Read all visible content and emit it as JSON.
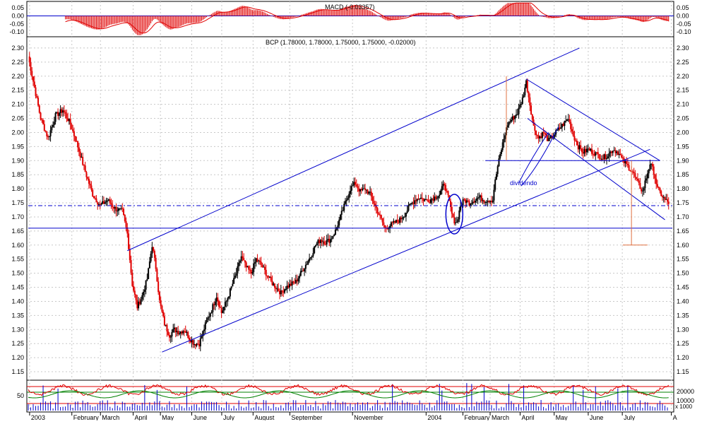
{
  "colors": {
    "frame": "#000000",
    "grid": "#c8c8c8",
    "up": "#000000",
    "down": "#e00000",
    "trend": "#0000cc",
    "macd_line": "#e00000",
    "macd_hist": "#e00000",
    "target": "#e07040",
    "osc_red": "#e00000",
    "osc_green": "#008000"
  },
  "chart_data": [
    {
      "type": "bar",
      "title": "MACD (-0.03357)",
      "ylim": [
        -0.13,
        0.09
      ],
      "yticks": [
        "0.05",
        "0.00",
        "-0.05",
        "-0.10"
      ],
      "ytick_values": [
        0.05,
        0.0,
        -0.05,
        -0.1
      ],
      "legend": "none",
      "grid": true
    },
    {
      "type": "line",
      "title": "BCP (1.78000, 1.78000, 1.75000, 1.75000, -0.02000)",
      "ylim": [
        1.12,
        2.34
      ],
      "yticks": [
        "2.30",
        "2.25",
        "2.20",
        "2.15",
        "2.10",
        "2.05",
        "2.00",
        "1.95",
        "1.90",
        "1.85",
        "1.80",
        "1.75",
        "1.70",
        "1.65",
        "1.60",
        "1.55",
        "1.50",
        "1.45",
        "1.40",
        "1.35",
        "1.30",
        "1.25",
        "1.20",
        "1.15"
      ],
      "ytick_values": [
        2.3,
        2.25,
        2.2,
        2.15,
        2.1,
        2.05,
        2.0,
        1.95,
        1.9,
        1.85,
        1.8,
        1.75,
        1.7,
        1.65,
        1.6,
        1.55,
        1.5,
        1.45,
        1.4,
        1.35,
        1.3,
        1.25,
        1.2,
        1.15
      ],
      "x_index_range": [
        0,
        375
      ],
      "price_anchors": [
        [
          0,
          2.27
        ],
        [
          5,
          2.16
        ],
        [
          10,
          2.05
        ],
        [
          16,
          1.98
        ],
        [
          22,
          2.06
        ],
        [
          28,
          2.08
        ],
        [
          34,
          2.03
        ],
        [
          40,
          1.95
        ],
        [
          46,
          1.86
        ],
        [
          52,
          1.78
        ],
        [
          58,
          1.74
        ],
        [
          64,
          1.76
        ],
        [
          70,
          1.73
        ],
        [
          76,
          1.72
        ],
        [
          80,
          1.64
        ],
        [
          84,
          1.46
        ],
        [
          88,
          1.38
        ],
        [
          92,
          1.42
        ],
        [
          96,
          1.48
        ],
        [
          100,
          1.6
        ],
        [
          103,
          1.52
        ],
        [
          106,
          1.4
        ],
        [
          110,
          1.32
        ],
        [
          114,
          1.28
        ],
        [
          118,
          1.3
        ],
        [
          122,
          1.29
        ],
        [
          126,
          1.3
        ],
        [
          130,
          1.27
        ],
        [
          134,
          1.25
        ],
        [
          138,
          1.25
        ],
        [
          141,
          1.29
        ],
        [
          144,
          1.33
        ],
        [
          148,
          1.37
        ],
        [
          152,
          1.42
        ],
        [
          156,
          1.36
        ],
        [
          160,
          1.4
        ],
        [
          164,
          1.45
        ],
        [
          168,
          1.5
        ],
        [
          172,
          1.56
        ],
        [
          176,
          1.52
        ],
        [
          180,
          1.5
        ],
        [
          184,
          1.55
        ],
        [
          188,
          1.53
        ],
        [
          192,
          1.5
        ],
        [
          196,
          1.47
        ],
        [
          200,
          1.45
        ],
        [
          204,
          1.43
        ],
        [
          208,
          1.45
        ],
        [
          212,
          1.46
        ],
        [
          216,
          1.47
        ],
        [
          220,
          1.5
        ],
        [
          224,
          1.53
        ],
        [
          228,
          1.56
        ],
        [
          232,
          1.6
        ],
        [
          236,
          1.62
        ],
        [
          240,
          1.61
        ],
        [
          244,
          1.62
        ],
        [
          248,
          1.65
        ],
        [
          252,
          1.7
        ],
        [
          256,
          1.75
        ],
        [
          260,
          1.8
        ],
        [
          264,
          1.82
        ],
        [
          268,
          1.79
        ],
        [
          272,
          1.8
        ],
        [
          276,
          1.78
        ],
        [
          280,
          1.74
        ],
        [
          284,
          1.7
        ],
        [
          288,
          1.66
        ],
        [
          292,
          1.67
        ],
        [
          296,
          1.68
        ],
        [
          300,
          1.69
        ],
        [
          304,
          1.71
        ],
        [
          308,
          1.74
        ],
        [
          312,
          1.76
        ],
        [
          316,
          1.77
        ],
        [
          320,
          1.76
        ],
        [
          324,
          1.76
        ],
        [
          328,
          1.77
        ],
        [
          332,
          1.78
        ],
        [
          336,
          1.82
        ],
        [
          340,
          1.75
        ],
        [
          343,
          1.69
        ],
        [
          346,
          1.68
        ],
        [
          349,
          1.74
        ],
        [
          352,
          1.76
        ],
        [
          356,
          1.75
        ],
        [
          360,
          1.76
        ],
        [
          364,
          1.77
        ],
        [
          368,
          1.76
        ],
        [
          372,
          1.76
        ],
        [
          375,
          1.76
        ]
      ],
      "tail_anchors": [
        [
          376,
          1.8
        ],
        [
          379,
          1.88
        ],
        [
          383,
          1.96
        ],
        [
          387,
          2.03
        ],
        [
          391,
          2.05
        ],
        [
          395,
          2.07
        ],
        [
          399,
          2.12
        ],
        [
          402,
          2.18
        ],
        [
          405,
          2.1
        ],
        [
          408,
          2.02
        ],
        [
          412,
          1.98
        ],
        [
          416,
          2.0
        ],
        [
          420,
          1.97
        ],
        [
          424,
          1.99
        ],
        [
          428,
          2.01
        ],
        [
          432,
          2.03
        ],
        [
          436,
          2.05
        ],
        [
          440,
          1.99
        ],
        [
          444,
          1.95
        ],
        [
          448,
          1.93
        ],
        [
          452,
          1.94
        ],
        [
          456,
          1.93
        ],
        [
          460,
          1.92
        ],
        [
          464,
          1.91
        ],
        [
          468,
          1.92
        ],
        [
          472,
          1.94
        ],
        [
          476,
          1.93
        ],
        [
          480,
          1.9
        ],
        [
          484,
          1.88
        ],
        [
          488,
          1.86
        ],
        [
          492,
          1.82
        ],
        [
          496,
          1.79
        ],
        [
          499,
          1.84
        ],
        [
          502,
          1.89
        ],
        [
          505,
          1.86
        ],
        [
          508,
          1.8
        ],
        [
          511,
          1.78
        ],
        [
          514,
          1.76
        ],
        [
          517,
          1.75
        ]
      ],
      "annotations": [
        "dividendo"
      ],
      "legend": "none",
      "grid": true
    },
    {
      "type": "line",
      "title": "",
      "yticks": [
        "50"
      ],
      "yticks_right": [
        "20000",
        "10000"
      ],
      "axis_unit": "x 1000",
      "legend": "none",
      "grid": true
    }
  ],
  "x_axis": {
    "labels": [
      "2003",
      "February",
      "March",
      "April",
      "May",
      "June",
      "July",
      "August",
      "September",
      "November",
      "2004",
      "February",
      "March",
      "April",
      "May",
      "June",
      "July",
      "A"
    ],
    "label_index": [
      2,
      64,
      106,
      154,
      194,
      240,
      284,
      330,
      384,
      476,
      584,
      638,
      678,
      722,
      772,
      822,
      872,
      944
    ]
  }
}
